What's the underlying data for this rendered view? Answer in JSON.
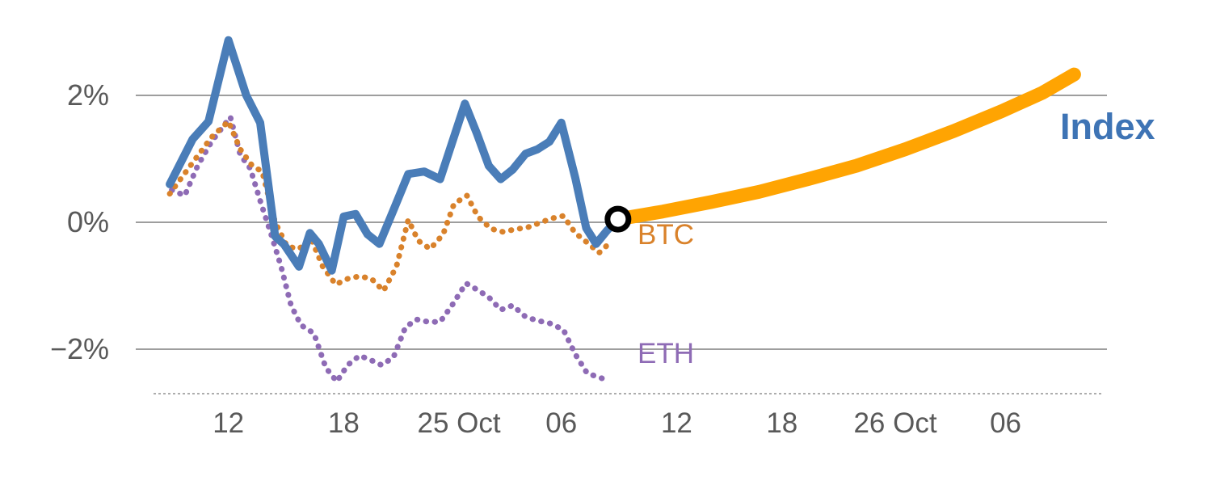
{
  "chart_data": {
    "type": "line",
    "title": "",
    "xlabel": "",
    "ylabel": "",
    "ylim": [
      -2.8,
      3.1
    ],
    "grid": "horizontal",
    "legend_position": "inline-end-of-line",
    "colors": {
      "index_line": "#4a7db8",
      "index_label": "#3e74b5",
      "btc": "#d9822b",
      "eth": "#8e6bb5",
      "forecast": "#ffa402",
      "gridline": "#9e9e9e",
      "tick_text": "#595959",
      "marker_ring": "#000000",
      "marker_fill": "#ffffff"
    },
    "y_ticks": [
      {
        "value": 2,
        "label": "2%"
      },
      {
        "value": 0,
        "label": "0%"
      },
      {
        "value": -2,
        "label": "−2%"
      }
    ],
    "x_ticks": [
      {
        "pos": 11.6,
        "label": "12"
      },
      {
        "pos": 23.2,
        "label": "18"
      },
      {
        "pos": 34.8,
        "label": "25 Oct"
      },
      {
        "pos": 45.1,
        "label": "06"
      },
      {
        "pos": 56.7,
        "label": "12"
      },
      {
        "pos": 67.3,
        "label": "18"
      },
      {
        "pos": 78.7,
        "label": "26 Oct"
      },
      {
        "pos": 89.8,
        "label": "06"
      }
    ],
    "series": [
      {
        "id": "eth",
        "name": "ETH",
        "style": "dotted",
        "color": "#8e6bb5",
        "width": 7,
        "unit": "%",
        "points": [
          [
            5.9,
            0.51
          ],
          [
            7.2,
            0.42
          ],
          [
            8.5,
            0.89
          ],
          [
            9.9,
            1.27
          ],
          [
            11.8,
            1.66
          ],
          [
            12.8,
            1.06
          ],
          [
            13.8,
            0.85
          ],
          [
            14.8,
            0.34
          ],
          [
            15.9,
            -0.19
          ],
          [
            16.9,
            -0.7
          ],
          [
            17.9,
            -1.31
          ],
          [
            18.9,
            -1.62
          ],
          [
            20.2,
            -1.75
          ],
          [
            21.4,
            -2.29
          ],
          [
            22.5,
            -2.51
          ],
          [
            23.6,
            -2.25
          ],
          [
            24.8,
            -2.1
          ],
          [
            25.9,
            -2.17
          ],
          [
            27.0,
            -2.25
          ],
          [
            28.2,
            -2.13
          ],
          [
            29.4,
            -1.66
          ],
          [
            30.5,
            -1.53
          ],
          [
            31.7,
            -1.57
          ],
          [
            32.9,
            -1.57
          ],
          [
            34.1,
            -1.31
          ],
          [
            35.5,
            -0.96
          ],
          [
            36.6,
            -1.06
          ],
          [
            37.8,
            -1.18
          ],
          [
            39.0,
            -1.38
          ],
          [
            40.2,
            -1.31
          ],
          [
            41.5,
            -1.49
          ],
          [
            42.7,
            -1.55
          ],
          [
            43.9,
            -1.59
          ],
          [
            45.3,
            -1.69
          ],
          [
            46.5,
            -2.08
          ],
          [
            47.7,
            -2.38
          ],
          [
            49.2,
            -2.46
          ]
        ]
      },
      {
        "id": "btc",
        "name": "BTC",
        "style": "dotted",
        "color": "#d9822b",
        "width": 7,
        "unit": "%",
        "points": [
          [
            5.7,
            0.45
          ],
          [
            8.1,
            0.96
          ],
          [
            9.9,
            1.34
          ],
          [
            11.6,
            1.59
          ],
          [
            12.8,
            1.15
          ],
          [
            14.0,
            0.89
          ],
          [
            15.0,
            0.8
          ],
          [
            16.3,
            0.0
          ],
          [
            17.5,
            -0.38
          ],
          [
            18.7,
            -0.42
          ],
          [
            19.9,
            -0.25
          ],
          [
            21.1,
            -0.7
          ],
          [
            22.4,
            -0.98
          ],
          [
            23.6,
            -0.89
          ],
          [
            24.8,
            -0.85
          ],
          [
            26.0,
            -0.89
          ],
          [
            27.2,
            -1.08
          ],
          [
            28.5,
            -0.7
          ],
          [
            29.7,
            0.04
          ],
          [
            30.7,
            -0.29
          ],
          [
            31.9,
            -0.42
          ],
          [
            33.2,
            -0.19
          ],
          [
            34.3,
            0.29
          ],
          [
            35.6,
            0.42
          ],
          [
            36.7,
            0.09
          ],
          [
            38.0,
            -0.1
          ],
          [
            39.2,
            -0.15
          ],
          [
            40.5,
            -0.11
          ],
          [
            41.7,
            -0.08
          ],
          [
            42.9,
            -0.01
          ],
          [
            44.1,
            0.06
          ],
          [
            45.3,
            0.1
          ],
          [
            46.5,
            -0.17
          ],
          [
            47.7,
            -0.32
          ],
          [
            48.9,
            -0.48
          ],
          [
            50.0,
            -0.32
          ]
        ]
      },
      {
        "id": "index",
        "name": "Index",
        "style": "solid",
        "color": "#4a7db8",
        "width": 10,
        "unit": "%",
        "points": [
          [
            5.7,
            0.6
          ],
          [
            8.0,
            1.31
          ],
          [
            9.6,
            1.59
          ],
          [
            11.6,
            2.87
          ],
          [
            13.4,
            2.0
          ],
          [
            14.8,
            1.57
          ],
          [
            16.3,
            -0.22
          ],
          [
            17.2,
            -0.35
          ],
          [
            18.7,
            -0.7
          ],
          [
            19.8,
            -0.17
          ],
          [
            20.7,
            -0.34
          ],
          [
            22.0,
            -0.76
          ],
          [
            23.2,
            0.09
          ],
          [
            24.4,
            0.13
          ],
          [
            25.6,
            -0.19
          ],
          [
            26.8,
            -0.34
          ],
          [
            28.2,
            0.19
          ],
          [
            29.7,
            0.76
          ],
          [
            31.3,
            0.8
          ],
          [
            32.9,
            0.68
          ],
          [
            35.4,
            1.87
          ],
          [
            36.6,
            1.4
          ],
          [
            37.8,
            0.89
          ],
          [
            39.0,
            0.68
          ],
          [
            40.2,
            0.83
          ],
          [
            41.5,
            1.08
          ],
          [
            42.7,
            1.15
          ],
          [
            43.9,
            1.27
          ],
          [
            45.1,
            1.57
          ],
          [
            46.5,
            0.7
          ],
          [
            47.6,
            -0.09
          ],
          [
            48.6,
            -0.34
          ],
          [
            49.7,
            -0.13
          ],
          [
            50.8,
            0.05
          ]
        ]
      },
      {
        "id": "index-forecast",
        "name": "index-forecast",
        "style": "solid",
        "color": "#ffa402",
        "width": 17,
        "unit": "%",
        "points": [
          [
            50.8,
            0.05
          ],
          [
            55.3,
            0.17
          ],
          [
            60.2,
            0.32
          ],
          [
            65.0,
            0.48
          ],
          [
            69.9,
            0.68
          ],
          [
            74.8,
            0.89
          ],
          [
            79.7,
            1.15
          ],
          [
            84.6,
            1.44
          ],
          [
            89.4,
            1.75
          ],
          [
            93.5,
            2.04
          ],
          [
            96.7,
            2.33
          ]
        ]
      }
    ],
    "marker": {
      "series": "index-forecast",
      "x": 50.8,
      "value": 0.05
    },
    "labels": {
      "index": "Index",
      "btc": "BTC",
      "eth": "ETH"
    }
  }
}
